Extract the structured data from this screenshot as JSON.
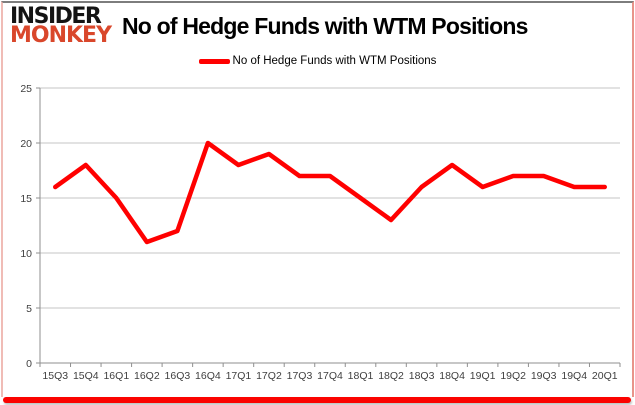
{
  "logo": {
    "line1": "INSIDER",
    "line2": "MONKEY"
  },
  "header": {
    "title": "No of Hedge Funds with WTM Positions"
  },
  "legend": {
    "label": "No of Hedge Funds with WTM Positions"
  },
  "colors": {
    "series": "#ff0000",
    "logo_accent": "#d9472b",
    "gridline": "#c6c6c6",
    "axis": "#8f8f8f",
    "axis_text": "#3f3f3f",
    "bottom_bar": "#fb0300"
  },
  "chart_data": {
    "type": "line",
    "title": "No of Hedge Funds with WTM Positions",
    "categories": [
      "15Q3",
      "15Q4",
      "16Q1",
      "16Q2",
      "16Q3",
      "16Q4",
      "17Q1",
      "17Q2",
      "17Q3",
      "17Q4",
      "18Q1",
      "18Q2",
      "18Q3",
      "18Q4",
      "19Q1",
      "19Q2",
      "19Q3",
      "19Q4",
      "20Q1"
    ],
    "series": [
      {
        "name": "No of Hedge Funds with WTM Positions",
        "values": [
          16,
          18,
          15,
          11,
          12,
          20,
          18,
          19,
          17,
          17,
          15,
          13,
          16,
          18,
          16,
          17,
          17,
          16,
          16
        ]
      }
    ],
    "ylim": [
      0,
      25
    ],
    "yticks": [
      0,
      5,
      10,
      15,
      20,
      25
    ],
    "xlabel": "",
    "ylabel": "",
    "grid": "horizontal",
    "legend_position": "top-center"
  }
}
